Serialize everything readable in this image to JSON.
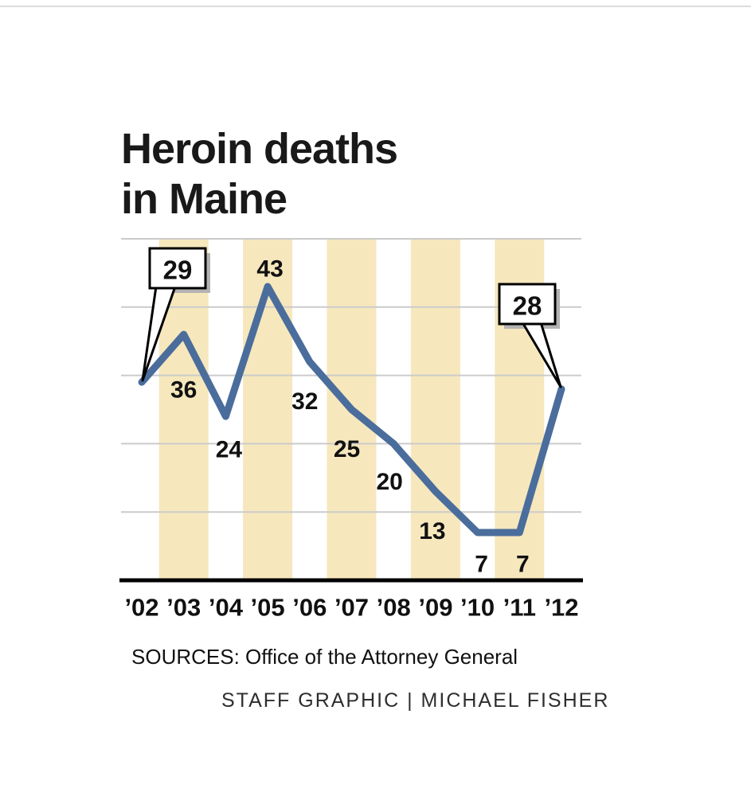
{
  "title": {
    "line1": "Heroin deaths",
    "line2": "in Maine"
  },
  "footer": {
    "sources": "SOURCES: Office of the Attorney General",
    "credit": "STAFF GRAPHIC | MICHAEL FISHER"
  },
  "colors": {
    "line": "#4a6d9c",
    "stripe": "#f6e7bd",
    "grid": "#cbcbcb",
    "axis": "#000000",
    "label": "#111111",
    "callout_fill": "#ffffff",
    "callout_border": "#000000",
    "callout_shadow": "#b3b3b3"
  },
  "chart_data": {
    "type": "line",
    "title": "Heroin deaths in Maine",
    "categories": [
      "’02",
      "’03",
      "’04",
      "’05",
      "’06",
      "’07",
      "’08",
      "’09",
      "’10",
      "’11",
      "’12"
    ],
    "values": [
      29,
      36,
      24,
      43,
      32,
      25,
      20,
      13,
      7,
      7,
      28
    ],
    "xlabel": "",
    "ylabel": "",
    "ylim": [
      0,
      50
    ],
    "gridline_step": 10,
    "grid": true,
    "legend": false,
    "point_labels": [
      "",
      "36",
      "24",
      "43",
      "32",
      "25",
      "20",
      "13",
      "7",
      "7",
      ""
    ],
    "callouts": [
      {
        "index": 0,
        "label": "29"
      },
      {
        "index": 10,
        "label": "28"
      }
    ],
    "striped_categories": [
      "’03",
      "’05",
      "’07",
      "’09",
      "’11"
    ]
  }
}
